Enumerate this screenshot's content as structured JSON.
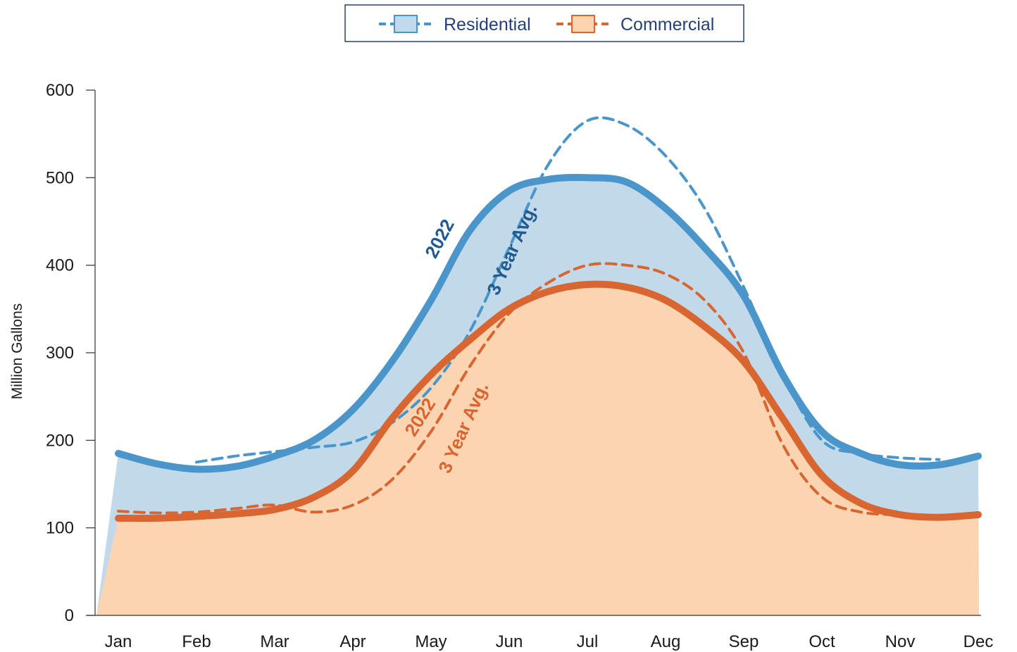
{
  "colors": {
    "residential_line": "#4a96cb",
    "residential_fill": "#c2d9ea",
    "residential_label": "#1f5a92",
    "commercial_line": "#d96630",
    "commercial_fill": "#fbd4b2",
    "legend_text": "#23407a",
    "legend_border": "#23407a"
  },
  "legend": {
    "items": [
      {
        "label": "Residential",
        "color_key": "residential"
      },
      {
        "label": "Commercial",
        "color_key": "commercial"
      }
    ]
  },
  "annotations": {
    "residential_2022": "2022",
    "residential_3yr": "3 Year Avg.",
    "commercial_2022": "2022",
    "commercial_3yr": "3 Year Avg."
  },
  "chart_data": {
    "type": "area",
    "ylabel": "Million Gallons",
    "ylim": [
      0,
      600
    ],
    "yticks": [
      0,
      100,
      200,
      300,
      400,
      500,
      600
    ],
    "categories": [
      "Jan",
      "Feb",
      "Mar",
      "Apr",
      "May",
      "Jun",
      "Jul",
      "Aug",
      "Sep",
      "Oct",
      "Nov",
      "Dec"
    ],
    "legend_position": "top-center",
    "grid": false,
    "series": [
      {
        "name": "Residential",
        "variant": "2022",
        "style": "solid",
        "x": [
          0,
          0.5,
          1,
          1.5,
          2,
          2.5,
          3,
          3.5,
          4,
          4.5,
          5,
          5.5,
          6,
          6.5,
          7,
          7.5,
          8,
          8.5,
          9,
          9.5,
          10,
          10.5,
          11
        ],
        "values": [
          185,
          173,
          167,
          170,
          182,
          200,
          235,
          290,
          360,
          440,
          485,
          498,
          500,
          495,
          465,
          420,
          365,
          275,
          210,
          185,
          172,
          172,
          182
        ]
      },
      {
        "name": "Residential",
        "variant": "3 Year Avg.",
        "style": "dashed",
        "x": [
          1,
          1.5,
          2,
          2.5,
          3,
          3.5,
          4,
          4.5,
          5,
          5.5,
          6,
          6.5,
          7,
          7.5,
          8,
          8.5,
          9,
          9.5,
          10,
          10.5
        ],
        "values": [
          175,
          182,
          187,
          192,
          198,
          220,
          260,
          325,
          420,
          515,
          565,
          560,
          525,
          465,
          375,
          275,
          200,
          185,
          180,
          178
        ]
      },
      {
        "name": "Commercial",
        "variant": "2022",
        "style": "solid",
        "x": [
          0,
          0.5,
          1,
          1.5,
          2,
          2.5,
          3,
          3.5,
          4,
          4.5,
          5,
          5.5,
          6,
          6.5,
          7,
          7.5,
          8,
          8.5,
          9,
          9.5,
          10,
          10.5,
          11
        ],
        "values": [
          111,
          111,
          113,
          116,
          121,
          135,
          165,
          225,
          275,
          315,
          350,
          370,
          378,
          375,
          360,
          330,
          290,
          225,
          160,
          128,
          115,
          112,
          115
        ]
      },
      {
        "name": "Commercial",
        "variant": "3 Year Avg.",
        "style": "dashed",
        "x": [
          0,
          0.5,
          1,
          1.5,
          2,
          2.5,
          3,
          3.5,
          4,
          4.5,
          5,
          5.5,
          6,
          6.5,
          7,
          7.5,
          8,
          8.5,
          9,
          9.5,
          10
        ],
        "values": [
          119,
          117,
          118,
          122,
          126,
          118,
          126,
          155,
          210,
          285,
          345,
          380,
          400,
          400,
          390,
          360,
          300,
          195,
          135,
          118,
          115
        ]
      }
    ]
  }
}
